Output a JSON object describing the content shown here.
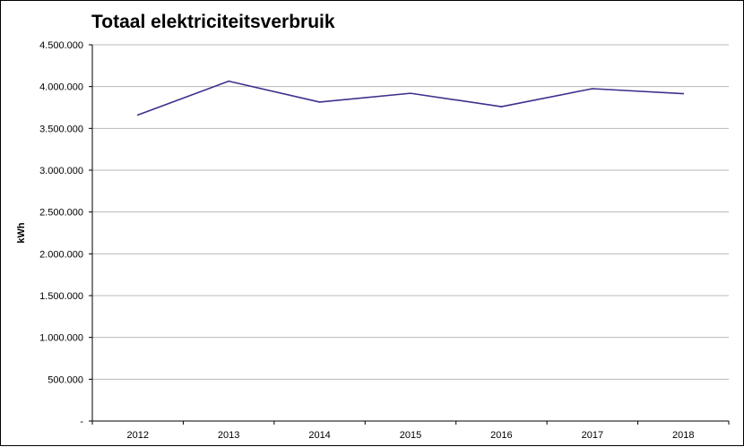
{
  "chart_data": {
    "type": "line",
    "title": "Totaal elektriciteitsverbruik",
    "xlabel": "",
    "ylabel": "kWh",
    "categories": [
      "2012",
      "2013",
      "2014",
      "2015",
      "2016",
      "2017",
      "2018"
    ],
    "series": [
      {
        "values": [
          3660000,
          4065000,
          3815000,
          3920000,
          3760000,
          3975000,
          3915000
        ]
      }
    ],
    "ylim": [
      0,
      4500000
    ],
    "yticks": [
      0,
      500000,
      1000000,
      1500000,
      2000000,
      2500000,
      3000000,
      3500000,
      4000000,
      4500000
    ],
    "ytick_labels": [
      "-",
      "500.000",
      "1.000.000",
      "1.500.000",
      "2.000.000",
      "2.500.000",
      "3.000.000",
      "3.500.000",
      "4.000.000",
      "4.500.000"
    ],
    "grid": true,
    "legend": "none",
    "line_color": "#3f2f8c",
    "grid_color": "#b8b8b8"
  }
}
